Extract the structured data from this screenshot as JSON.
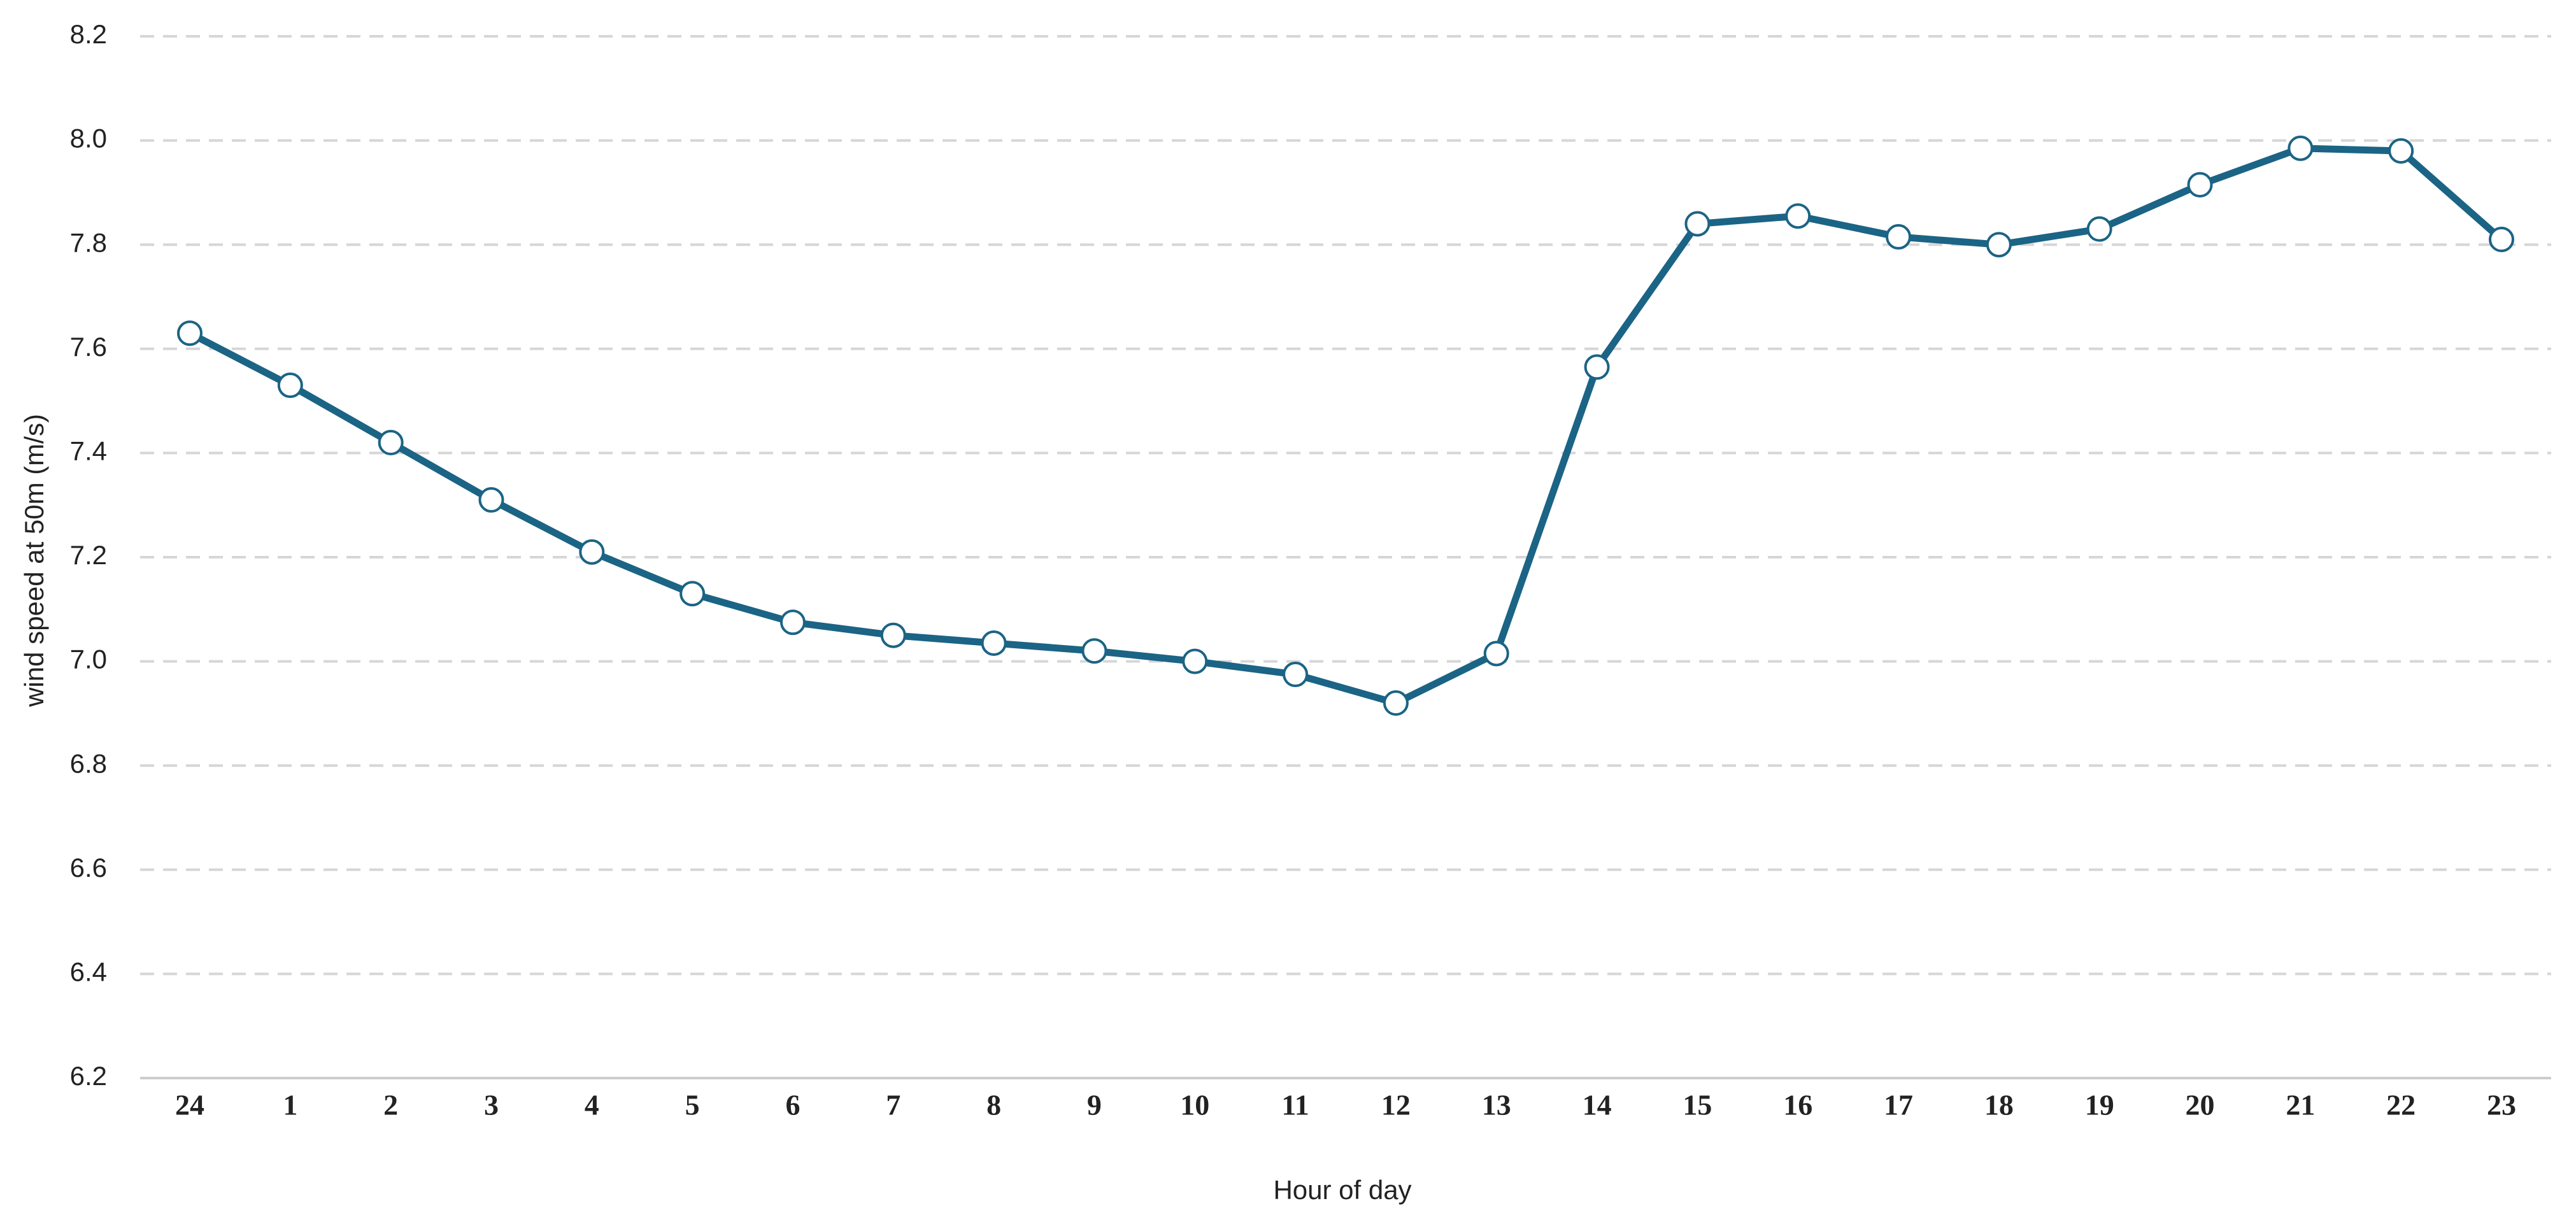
{
  "chart_data": {
    "type": "line",
    "x_label": "Hour of day",
    "y_label": "wind speed at 50m (m/s)",
    "categories": [
      "24",
      "1",
      "2",
      "3",
      "4",
      "5",
      "6",
      "7",
      "8",
      "9",
      "10",
      "11",
      "12",
      "13",
      "14",
      "15",
      "16",
      "17",
      "18",
      "19",
      "20",
      "21",
      "22",
      "23"
    ],
    "series": [
      {
        "name": "wind speed",
        "color": "#1b6485",
        "values": [
          7.63,
          7.53,
          7.42,
          7.31,
          7.21,
          7.13,
          7.075,
          7.05,
          7.035,
          7.02,
          7.0,
          6.975,
          6.92,
          7.015,
          7.565,
          7.84,
          7.855,
          7.815,
          7.8,
          7.83,
          7.915,
          7.985,
          7.98,
          7.81
        ]
      }
    ],
    "ylim": [
      6.2,
      8.2
    ],
    "yticks": [
      6.2,
      6.4,
      6.6,
      6.8,
      {
        "value": 7,
        "label": "7.0"
      },
      7.2,
      7.4,
      7.6,
      7.8,
      {
        "value": 8,
        "label": "8.0"
      },
      8.2
    ],
    "grid": true
  }
}
